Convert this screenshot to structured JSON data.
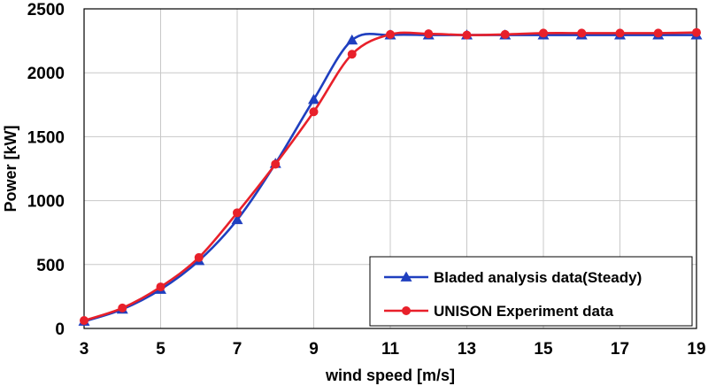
{
  "chart_data": {
    "type": "line",
    "xlabel": "wind speed [m/s]",
    "ylabel": "Power [kW]",
    "xlim": [
      3,
      19
    ],
    "ylim": [
      0,
      2500
    ],
    "xticks": [
      3,
      5,
      7,
      9,
      11,
      13,
      15,
      17,
      19
    ],
    "yticks": [
      0,
      500,
      1000,
      1500,
      2000,
      2500
    ],
    "grid": true,
    "legend_position": "bottom-right",
    "series": [
      {
        "name": "Bladed analysis data(Steady)",
        "color": "#1f3fbf",
        "marker": "triangle",
        "x": [
          3,
          4,
          5,
          6,
          7,
          8,
          9,
          10,
          11,
          12,
          13,
          14,
          15,
          16,
          17,
          18,
          19
        ],
        "y": [
          55,
          150,
          305,
          530,
          850,
          1290,
          1790,
          2255,
          2295,
          2295,
          2295,
          2295,
          2295,
          2295,
          2295,
          2295,
          2295
        ]
      },
      {
        "name": "UNISON Experiment data",
        "color": "#e8202a",
        "marker": "circle",
        "x": [
          3,
          4,
          5,
          6,
          7,
          8,
          9,
          10,
          11,
          12,
          13,
          14,
          15,
          16,
          17,
          18,
          19
        ],
        "y": [
          62,
          160,
          325,
          555,
          905,
          1285,
          1695,
          2145,
          2300,
          2305,
          2295,
          2300,
          2310,
          2310,
          2310,
          2310,
          2315
        ]
      }
    ]
  }
}
